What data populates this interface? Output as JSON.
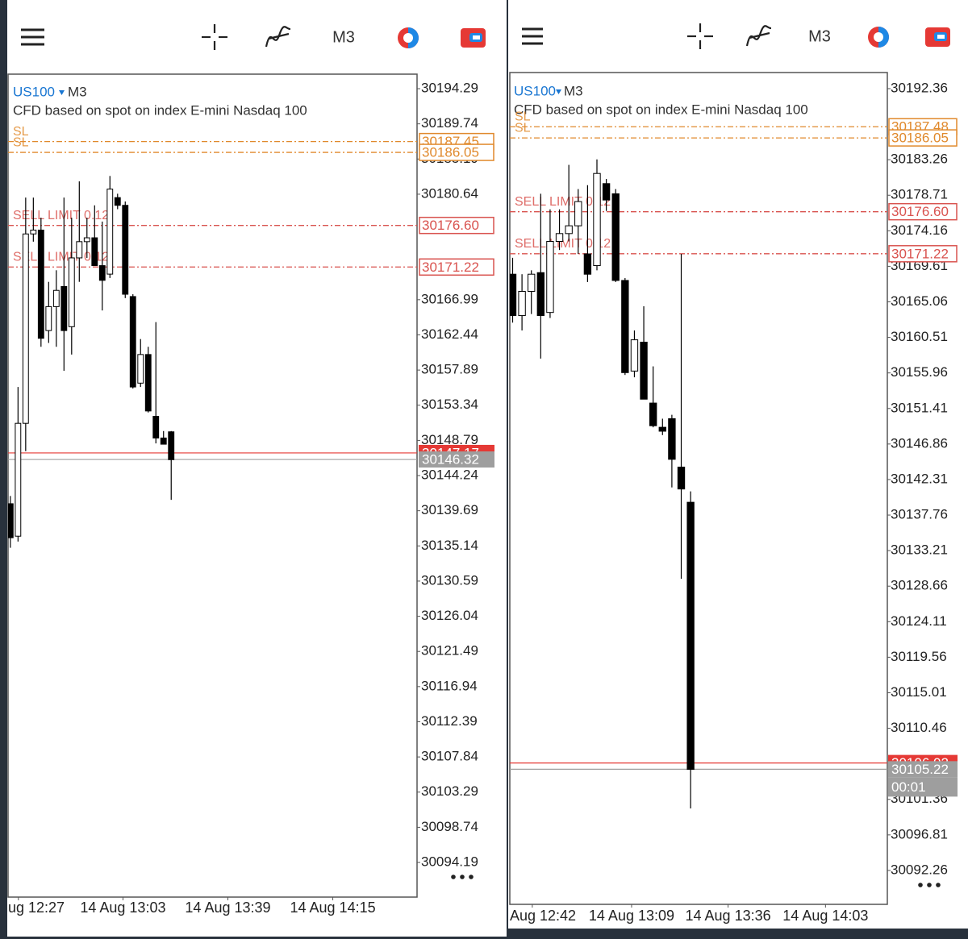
{
  "chart_data": [
    {
      "type": "candlestick",
      "symbol": "US100",
      "timeframe": "M3",
      "subtitle": "CFD based on spot on index E-mini Nasdaq 100",
      "open": [
        30140.6,
        30136.4,
        30151.0,
        30175.5,
        30176.0,
        30163.0,
        30166.1,
        30168.7,
        30163.5,
        30172.4,
        30174.5,
        30175.0,
        30171.4,
        30170.3,
        30180.2,
        30179.2,
        30167.4,
        30156.2,
        30159.9,
        30151.9,
        30149.1,
        30149.9
      ],
      "high": [
        30141.6,
        30155.7,
        30180.2,
        30180.2,
        30177.6,
        30169.3,
        30170.8,
        30180.2,
        30177.6,
        30182.3,
        30177.6,
        30179.2,
        30177.1,
        30183.0,
        30180.7,
        30179.7,
        30167.7,
        30161.9,
        30160.9,
        30164.1,
        30150.0,
        30150.0
      ],
      "low": [
        30134.9,
        30135.7,
        30147.4,
        30174.5,
        30160.9,
        30161.4,
        30160.9,
        30157.8,
        30159.9,
        30169.3,
        30172.4,
        30171.4,
        30165.6,
        30169.8,
        30178.7,
        30167.2,
        30155.5,
        30155.7,
        30152.4,
        30148.4,
        30148.3,
        30141.1
      ],
      "close": [
        30136.2,
        30151.0,
        30175.5,
        30176.0,
        30162.0,
        30166.1,
        30168.2,
        30163.0,
        30172.4,
        30174.5,
        30175.0,
        30171.4,
        30169.5,
        30181.3,
        30179.2,
        30167.7,
        30155.7,
        30159.9,
        30152.6,
        30149.1,
        30148.3,
        30146.3
      ],
      "up_color": "#ffffff",
      "down_color": "#000000",
      "ylim": [
        30089.71,
        30196.17
      ],
      "yticks": [
        30194.29,
        30189.74,
        30185.19,
        30180.64,
        30166.99,
        30162.44,
        30157.89,
        30153.34,
        30148.79,
        30144.24,
        30139.69,
        30135.14,
        30130.59,
        30126.04,
        30121.49,
        30116.94,
        30112.39,
        30107.84,
        30103.29,
        30098.74,
        30094.19
      ],
      "xlim": [
        -0.3,
        53.1
      ],
      "xticks": [
        {
          "value": 1.05,
          "label": "ug 12:27"
        },
        {
          "value": 14.7,
          "label": "14 Aug 13:03"
        },
        {
          "value": 28.4,
          "label": "14 Aug 13:39"
        },
        {
          "value": 42.1,
          "label": "14 Aug 14:15"
        }
      ],
      "order_lines": [
        {
          "label": "SL",
          "value": 30187.45,
          "color": "#e0892c"
        },
        {
          "label": "SL",
          "value": 30186.05,
          "color": "#e0892c"
        },
        {
          "label": "SELL LIMIT 0.12",
          "value": 30176.6,
          "value_label": "30176.60",
          "color": "#d9534f"
        },
        {
          "label": "SELL LIMIT 0.12",
          "value": 30171.22,
          "color": "#d9534f"
        }
      ],
      "price_lines": [
        {
          "value": 30147.17,
          "color": "#e53935"
        },
        {
          "value": 30146.32,
          "color": "#9e9e9e"
        }
      ]
    },
    {
      "type": "candlestick",
      "symbol": "US100",
      "timeframe": "M3",
      "subtitle": "CFD based on spot on index E-mini Nasdaq 100",
      "open": [
        30168.6,
        30163.3,
        30166.4,
        30168.8,
        30163.7,
        30172.8,
        30173.8,
        30174.8,
        30171.2,
        30169.7,
        30180.2,
        30178.9,
        30167.8,
        30156.2,
        30159.9,
        30152.1,
        30149.0,
        30150.1,
        30143.9,
        30139.4
      ],
      "high": [
        30170.7,
        30168.6,
        30169.1,
        30178.9,
        30176.9,
        30176.9,
        30182.6,
        30179.5,
        30180.0,
        30183.3,
        30180.8,
        30179.5,
        30168.1,
        30161.4,
        30164.5,
        30156.8,
        30150.1,
        30150.6,
        30171.2,
        30140.8
      ],
      "low": [
        30162.4,
        30161.4,
        30163.5,
        30157.8,
        30163.0,
        30171.7,
        30172.8,
        30171.2,
        30167.6,
        30169.1,
        30176.7,
        30167.6,
        30155.7,
        30155.4,
        30152.6,
        30149.0,
        30148.0,
        30141.3,
        30129.6,
        30100.2
      ],
      "close": [
        30163.3,
        30166.4,
        30168.6,
        30163.3,
        30172.8,
        30173.8,
        30174.8,
        30177.9,
        30168.6,
        30181.5,
        30178.1,
        30167.8,
        30156.0,
        30160.2,
        30152.6,
        30149.2,
        30148.5,
        30144.9,
        30141.1,
        30105.2
      ],
      "up_color": "#ffffff",
      "down_color": "#000000",
      "ylim": [
        30087.92,
        30194.42
      ],
      "yticks": [
        30192.36,
        30183.26,
        30178.71,
        30174.16,
        30169.61,
        30165.06,
        30160.51,
        30155.96,
        30151.41,
        30146.86,
        30142.31,
        30137.76,
        30133.21,
        30128.66,
        30124.11,
        30119.56,
        30115.01,
        30110.46,
        30101.36,
        30096.81,
        30092.26
      ],
      "xlim": [
        -0.3,
        40.0
      ],
      "xticks": [
        {
          "value": 2.1,
          "label": "Aug 12:42"
        },
        {
          "value": 12.7,
          "label": "14 Aug 13:09"
        },
        {
          "value": 23.0,
          "label": "14 Aug 13:36"
        },
        {
          "value": 33.4,
          "label": "14 Aug 14:03"
        }
      ],
      "order_lines": [
        {
          "label": "SL",
          "value": 30187.48,
          "color": "#e0892c"
        },
        {
          "label": "SL",
          "value": 30186.05,
          "color": "#e0892c"
        },
        {
          "label": "SELL LIMIT 0.12",
          "value": 30176.6,
          "value_label": "30176.60",
          "color": "#d9534f"
        },
        {
          "label": "SELL LIMIT 0.12",
          "value": 30171.22,
          "color": "#d9534f"
        }
      ],
      "price_lines": [
        {
          "value": 30106.02,
          "color": "#e53935"
        },
        {
          "value": 30105.22,
          "color": "#9e9e9e"
        }
      ],
      "timer": "00:01"
    }
  ]
}
